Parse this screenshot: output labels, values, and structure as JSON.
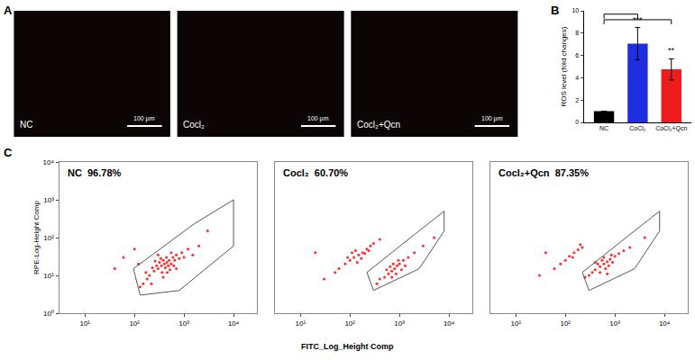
{
  "chart_data": [
    {
      "type": "image",
      "label": "A",
      "images": [
        {
          "label": "NC",
          "scale_bar": "100 μm"
        },
        {
          "label": "Cocl₂",
          "scale_bar": "100 μm"
        },
        {
          "label": "Cocl₂+Qcn",
          "scale_bar": "100 μm"
        }
      ]
    },
    {
      "type": "bar",
      "label": "B",
      "categories": [
        "NC",
        "CoCl₂",
        "CoCl₂+Qcn"
      ],
      "values": [
        1,
        7.05,
        4.75
      ],
      "errors": [
        0,
        1.45,
        0.95
      ],
      "colors": [
        "#000000",
        "#1f2fe0",
        "#ee1c1c"
      ],
      "ylabel": "ROS level (fold changes)",
      "ylim": [
        0,
        10
      ],
      "yticks": [
        0,
        2,
        4,
        6,
        8,
        10
      ],
      "grid": false,
      "annotations": [
        {
          "category": "CoCl₂",
          "text": "***"
        },
        {
          "category": "CoCl₂+Qcn",
          "text": "**"
        }
      ]
    },
    {
      "type": "scatter",
      "label": "C",
      "log": true,
      "grid": false,
      "marker": "dot",
      "color": "#ff2a2a",
      "xlabel": "FITC_Log_Height Comp",
      "ylabel": "RPE-Log-Height Comp",
      "xlim": [
        3,
        30000
      ],
      "ylim": [
        1,
        10000
      ],
      "xticks": [
        {
          "value": 10,
          "label": "10¹"
        },
        {
          "value": 100,
          "label": "10²"
        },
        {
          "value": 1000,
          "label": "10³"
        },
        {
          "value": 10000,
          "label": "10⁴"
        }
      ],
      "yticks": [
        {
          "value": 1,
          "label": "10⁰"
        },
        {
          "value": 10,
          "label": "10¹"
        },
        {
          "value": 100,
          "label": "10²"
        },
        {
          "value": 1000,
          "label": "10³"
        },
        {
          "value": 10000,
          "label": "10⁴"
        }
      ],
      "panels": [
        {
          "title": "NC  96.78%",
          "x": [
            400,
            350,
            450,
            300,
            500,
            250,
            600,
            200,
            700,
            380,
            420,
            320,
            480,
            550,
            280,
            650,
            180,
            900,
            150,
            1200,
            360,
            440,
            520,
            260,
            800,
            230,
            620,
            340,
            460,
            1000,
            130,
            170,
            2000,
            1500,
            120,
            700,
            300,
            550,
            220,
            380,
            40,
            60,
            3000,
            100
          ],
          "y": [
            20,
            18,
            22,
            15,
            25,
            13,
            30,
            10,
            35,
            25,
            16,
            22,
            18,
            20,
            18,
            25,
            8,
            40,
            6,
            50,
            12,
            30,
            14,
            24,
            28,
            16,
            18,
            28,
            12,
            30,
            5,
            12,
            60,
            35,
            20,
            15,
            35,
            40,
            6,
            9,
            15,
            30,
            150,
            50
          ],
          "gate": {
            "x": [
              130,
              95,
              1600,
              10000,
              10000,
              800
            ],
            "y": [
              3,
              15,
              230,
              1000,
              60,
              4
            ]
          }
        },
        {
          "title": "Cocl₂  60.70%",
          "x": [
            150,
            120,
            180,
            100,
            220,
            80,
            260,
            60,
            300,
            130,
            170,
            200,
            90,
            240,
            400,
            50,
            140,
            110,
            800,
            700,
            900,
            600,
            1000,
            500,
            1200,
            400,
            1500,
            750,
            850,
            650,
            1100,
            950,
            2000,
            350,
            1300,
            550,
            3000,
            700,
            30,
            20,
            5000
          ],
          "y": [
            35,
            30,
            40,
            25,
            50,
            20,
            60,
            15,
            70,
            45,
            28,
            38,
            30,
            45,
            90,
            12,
            22,
            40,
            15,
            13,
            18,
            11,
            20,
            9,
            25,
            8,
            30,
            20,
            11,
            17,
            14,
            25,
            40,
            6,
            18,
            14,
            60,
            9,
            8,
            40,
            100
          ],
          "gate": {
            "x": [
              300,
              220,
              2000,
              8000,
              8000,
              2500
            ],
            "y": [
              4,
              12,
              120,
              500,
              150,
              15
            ]
          }
        },
        {
          "title": "Cocl₂+Qcn  87.35%",
          "x": [
            600,
            500,
            700,
            400,
            800,
            350,
            1000,
            300,
            1200,
            550,
            650,
            450,
            750,
            900,
            1500,
            250,
            600,
            850,
            500,
            2000,
            700,
            400,
            150,
            120,
            180,
            100,
            220,
            80,
            140,
            200,
            60,
            30,
            4000,
            40
          ],
          "y": [
            20,
            17,
            23,
            14,
            27,
            12,
            32,
            10,
            38,
            25,
            15,
            20,
            18,
            22,
            45,
            9,
            30,
            35,
            12,
            55,
            11,
            22,
            40,
            32,
            48,
            25,
            55,
            20,
            30,
            65,
            15,
            10,
            100,
            40
          ],
          "gate": {
            "x": [
              300,
              220,
              2000,
              8000,
              8000,
              2500
            ],
            "y": [
              4,
              12,
              120,
              500,
              150,
              15
            ]
          }
        }
      ]
    }
  ]
}
